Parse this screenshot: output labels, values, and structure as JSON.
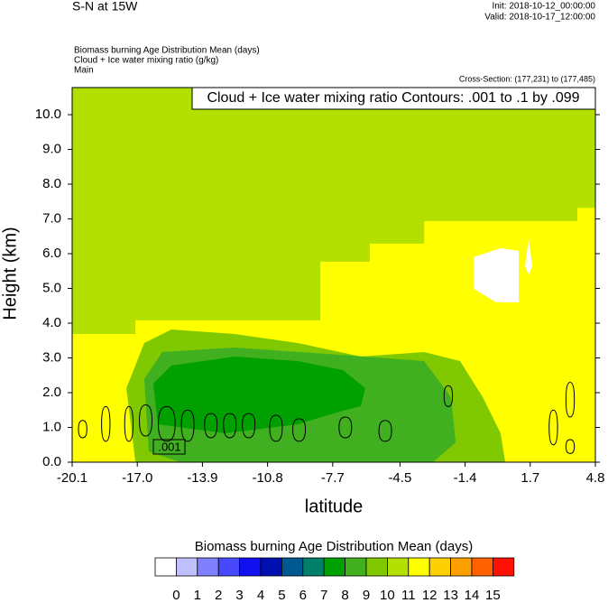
{
  "chart_data": {
    "type": "contour",
    "title": "S-N at 15W",
    "init": "Init: 2018-10-12_00:00:00",
    "valid": "Valid: 2018-10-17_12:00:00",
    "subtitles": [
      "Biomass burning Age Distribution Mean   (days)",
      "Cloud + Ice water mixing ratio   (g/kg)",
      "Main"
    ],
    "cross_section": "Cross-Section: (177,231) to (177,485)",
    "contour_info": "Cloud + Ice water mixing ratio Contours: .001 to .1 by .099",
    "xlabel": "latitude",
    "ylabel": "Height (km)",
    "xlim": [
      -20.1,
      4.8
    ],
    "ylim": [
      0,
      10.78
    ],
    "xticks": [
      -20.1,
      {
        "value": -17.0,
        "label": "-17.0"
      },
      -13.9,
      -10.8,
      -7.7,
      -4.5,
      -1.4,
      1.7,
      4.8
    ],
    "yticks": [
      {
        "value": 0,
        "label": "0.0"
      },
      {
        "value": 1,
        "label": "1.0"
      },
      {
        "value": 2,
        "label": "2.0"
      },
      {
        "value": 3,
        "label": "3.0"
      },
      {
        "value": 4,
        "label": "4.0"
      },
      {
        "value": 5,
        "label": "5.0"
      },
      {
        "value": 6,
        "label": "6.0"
      },
      {
        "value": 7,
        "label": "7.0"
      },
      {
        "value": 8,
        "label": "8.0"
      },
      {
        "value": 9,
        "label": "9.0"
      },
      {
        "value": 10,
        "label": "10.0"
      }
    ],
    "regions": [
      {
        "color": "#b4e000",
        "x": [
          -20.1,
          -20.1,
          4.8,
          4.8
        ],
        "y": [
          0,
          10.78,
          10.78,
          0
        ]
      },
      {
        "color": "#ffff00",
        "x": [
          -20.1,
          -20.1,
          -17.09,
          -17.09,
          -8.29,
          -8.29,
          -5.93,
          -5.93,
          -3.35,
          -3.35,
          3.94,
          3.94,
          4.8,
          4.8
        ],
        "y": [
          0,
          3.69,
          3.69,
          4.08,
          4.08,
          5.77,
          5.77,
          6.29,
          6.29,
          6.94,
          6.94,
          7.32,
          7.32,
          0
        ]
      },
      {
        "color": "#80c800",
        "x": [
          -17.09,
          -17.52,
          -16.67,
          -15.38,
          -12.37,
          -9.37,
          -6.36,
          -3.35,
          -1.64,
          -0.56,
          0.29,
          0.51
        ],
        "y": [
          0,
          2.13,
          3.43,
          3.82,
          3.69,
          3.43,
          3.04,
          3.17,
          2.91,
          1.87,
          0.83,
          0
        ]
      },
      {
        "color": "#40b020",
        "x": [
          -16.45,
          -16.67,
          -15.81,
          -12.37,
          -8.08,
          -3.35,
          -2.07,
          -1.85,
          -2.92,
          -14.95
        ],
        "y": [
          0.31,
          2.39,
          3.17,
          3.3,
          3.12,
          2.91,
          1.87,
          0.57,
          0,
          0
        ]
      },
      {
        "color": "#00a000",
        "x": [
          -16.02,
          -16.24,
          -15.38,
          -12.37,
          -9.37,
          -7.22,
          -6.15,
          -6.36,
          -7.22,
          -9.37,
          -12.8
        ],
        "y": [
          1.09,
          2.26,
          2.78,
          3.04,
          2.91,
          2.65,
          2.13,
          1.61,
          1.48,
          1.09,
          0.83
        ]
      },
      {
        "color": "#ffffff",
        "x": [
          -1.0,
          0.29,
          1.15,
          1.15,
          0.08,
          -1.0
        ],
        "y": [
          5.9,
          6.16,
          6.08,
          4.6,
          4.6,
          4.99
        ]
      },
      {
        "color": "#ffffff",
        "x": [
          1.45,
          1.62,
          1.8,
          1.62
        ],
        "y": [
          5.64,
          6.42,
          5.64,
          5.4
        ]
      }
    ],
    "contours": [
      {
        "x": [
          -19.8,
          -19.6,
          -19.4,
          -19.6
        ],
        "y": [
          0.95,
          1.2,
          0.95,
          0.7
        ]
      },
      {
        "x": [
          -18.7,
          -18.5,
          -18.3,
          -18.5
        ],
        "y": [
          1.1,
          1.6,
          1.1,
          0.6
        ]
      },
      {
        "x": [
          -17.6,
          -17.4,
          -17.2,
          -17.4
        ],
        "y": [
          1.1,
          1.6,
          1.1,
          0.6
        ]
      },
      {
        "x": [
          -16.9,
          -16.6,
          -16.3,
          -16.6
        ],
        "y": [
          1.2,
          1.65,
          1.2,
          0.75
        ]
      },
      {
        "x": [
          -16.0,
          -15.6,
          -15.2,
          -15.6
        ],
        "y": [
          1.1,
          1.6,
          1.1,
          0.6
        ]
      },
      {
        "x": [
          -14.9,
          -14.6,
          -14.3,
          -14.6
        ],
        "y": [
          1.1,
          1.5,
          1.1,
          0.6
        ]
      },
      {
        "x": [
          -13.8,
          -13.5,
          -13.2,
          -13.5
        ],
        "y": [
          1.1,
          1.4,
          1.1,
          0.7
        ]
      },
      {
        "x": [
          -12.9,
          -12.6,
          -12.3,
          -12.6
        ],
        "y": [
          1.1,
          1.4,
          1.1,
          0.7
        ]
      },
      {
        "x": [
          -12.0,
          -11.7,
          -11.4,
          -11.7
        ],
        "y": [
          1.1,
          1.4,
          1.1,
          0.7
        ]
      },
      {
        "x": [
          -10.7,
          -10.4,
          -10.1,
          -10.4
        ],
        "y": [
          1.0,
          1.35,
          1.0,
          0.6
        ]
      },
      {
        "x": [
          -9.6,
          -9.3,
          -9.0,
          -9.3
        ],
        "y": [
          0.95,
          1.25,
          0.95,
          0.6
        ]
      },
      {
        "x": [
          -7.4,
          -7.1,
          -6.8,
          -7.1
        ],
        "y": [
          1.0,
          1.3,
          1.0,
          0.7
        ]
      },
      {
        "x": [
          -5.5,
          -5.2,
          -4.9,
          -5.2
        ],
        "y": [
          0.9,
          1.2,
          0.9,
          0.6
        ]
      },
      {
        "x": [
          -2.4,
          -2.2,
          -2.0,
          -2.2
        ],
        "y": [
          1.9,
          2.2,
          1.9,
          1.6
        ]
      },
      {
        "x": [
          2.6,
          2.8,
          3.0,
          2.8
        ],
        "y": [
          1.0,
          1.5,
          1.0,
          0.5
        ]
      },
      {
        "x": [
          3.4,
          3.6,
          3.8,
          3.6
        ],
        "y": [
          1.8,
          2.3,
          1.8,
          1.3
        ]
      },
      {
        "x": [
          3.4,
          3.6,
          3.8,
          3.6
        ],
        "y": [
          0.45,
          0.65,
          0.45,
          0.25
        ]
      }
    ],
    "contour_label": ".001",
    "colorbar": {
      "title": "Biomass burning Age Distribution Mean  (days)",
      "colors": [
        "#ffffff",
        "#c0c0ff",
        "#8080ff",
        "#4848ff",
        "#1010f0",
        "#0010b0",
        "#005890",
        "#00806a",
        "#00a000",
        "#40b020",
        "#80c800",
        "#b4e000",
        "#ffff00",
        "#ffd000",
        "#ffa000",
        "#ff6000",
        "#ff1000"
      ],
      "labels": [
        0,
        1,
        2,
        3,
        4,
        5,
        6,
        7,
        8,
        9,
        10,
        11,
        12,
        13,
        14,
        15
      ]
    }
  }
}
